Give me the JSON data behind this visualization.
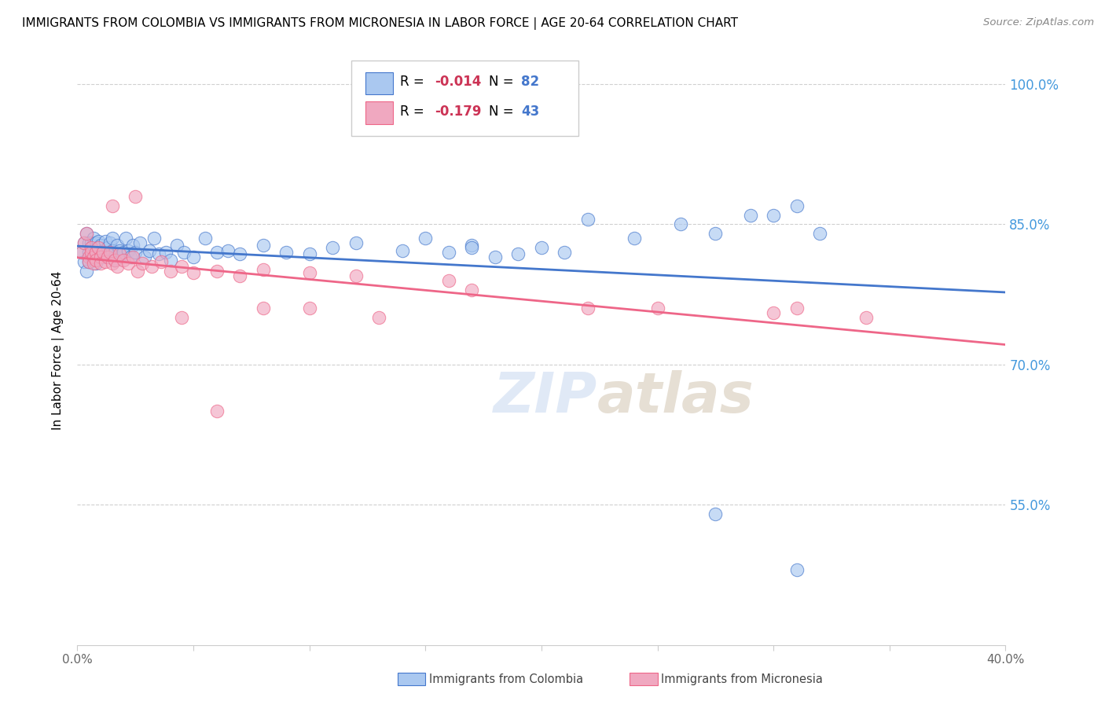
{
  "title": "IMMIGRANTS FROM COLOMBIA VS IMMIGRANTS FROM MICRONESIA IN LABOR FORCE | AGE 20-64 CORRELATION CHART",
  "source": "Source: ZipAtlas.com",
  "ylabel": "In Labor Force | Age 20-64",
  "xlim": [
    0.0,
    0.4
  ],
  "ylim": [
    0.4,
    1.03
  ],
  "yticks": [
    0.55,
    0.7,
    0.85,
    1.0
  ],
  "ytick_labels": [
    "55.0%",
    "70.0%",
    "85.0%",
    "100.0%"
  ],
  "xtick_labels_outer": [
    "0.0%",
    "40.0%"
  ],
  "colombia_R": -0.014,
  "colombia_N": 82,
  "micronesia_R": -0.179,
  "micronesia_N": 43,
  "colombia_color": "#aac8f0",
  "micronesia_color": "#f0a8c0",
  "colombia_line_color": "#4477cc",
  "micronesia_line_color": "#ee6688",
  "legend_R_color": "#cc3355",
  "legend_N_color": "#4477cc",
  "watermark_color": "#c8d8f0",
  "colombia_x": [
    0.002,
    0.003,
    0.003,
    0.004,
    0.004,
    0.005,
    0.005,
    0.005,
    0.006,
    0.006,
    0.006,
    0.007,
    0.007,
    0.007,
    0.007,
    0.008,
    0.008,
    0.008,
    0.009,
    0.009,
    0.009,
    0.01,
    0.01,
    0.011,
    0.011,
    0.012,
    0.012,
    0.013,
    0.013,
    0.014,
    0.014,
    0.015,
    0.015,
    0.016,
    0.016,
    0.017,
    0.018,
    0.019,
    0.02,
    0.021,
    0.022,
    0.023,
    0.024,
    0.025,
    0.027,
    0.029,
    0.031,
    0.033,
    0.035,
    0.038,
    0.04,
    0.043,
    0.046,
    0.05,
    0.055,
    0.06,
    0.065,
    0.07,
    0.08,
    0.09,
    0.1,
    0.11,
    0.12,
    0.14,
    0.15,
    0.16,
    0.17,
    0.18,
    0.2,
    0.22,
    0.24,
    0.26,
    0.275,
    0.29,
    0.3,
    0.31,
    0.32,
    0.21,
    0.19,
    0.17,
    0.275,
    0.31
  ],
  "colombia_y": [
    0.82,
    0.81,
    0.83,
    0.8,
    0.84,
    0.82,
    0.83,
    0.81,
    0.83,
    0.825,
    0.815,
    0.82,
    0.828,
    0.835,
    0.812,
    0.822,
    0.83,
    0.808,
    0.825,
    0.818,
    0.832,
    0.82,
    0.828,
    0.815,
    0.822,
    0.832,
    0.818,
    0.82,
    0.825,
    0.83,
    0.815,
    0.822,
    0.835,
    0.82,
    0.812,
    0.828,
    0.822,
    0.818,
    0.82,
    0.835,
    0.822,
    0.815,
    0.828,
    0.82,
    0.83,
    0.815,
    0.822,
    0.835,
    0.818,
    0.82,
    0.812,
    0.828,
    0.82,
    0.815,
    0.835,
    0.82,
    0.822,
    0.818,
    0.828,
    0.82,
    0.818,
    0.825,
    0.83,
    0.822,
    0.835,
    0.82,
    0.828,
    0.815,
    0.825,
    0.855,
    0.835,
    0.85,
    0.84,
    0.86,
    0.86,
    0.87,
    0.84,
    0.82,
    0.818,
    0.825,
    0.54,
    0.48
  ],
  "micronesia_x": [
    0.002,
    0.003,
    0.004,
    0.005,
    0.005,
    0.006,
    0.006,
    0.007,
    0.007,
    0.008,
    0.008,
    0.009,
    0.01,
    0.01,
    0.011,
    0.012,
    0.013,
    0.014,
    0.015,
    0.016,
    0.017,
    0.018,
    0.02,
    0.022,
    0.024,
    0.026,
    0.028,
    0.032,
    0.036,
    0.04,
    0.045,
    0.05,
    0.06,
    0.07,
    0.08,
    0.1,
    0.12,
    0.16,
    0.17,
    0.22,
    0.25,
    0.3,
    0.34
  ],
  "micronesia_y": [
    0.82,
    0.83,
    0.84,
    0.815,
    0.81,
    0.825,
    0.82,
    0.815,
    0.808,
    0.82,
    0.812,
    0.825,
    0.815,
    0.808,
    0.82,
    0.81,
    0.815,
    0.82,
    0.808,
    0.812,
    0.805,
    0.818,
    0.812,
    0.808,
    0.815,
    0.8,
    0.808,
    0.805,
    0.81,
    0.8,
    0.805,
    0.798,
    0.8,
    0.795,
    0.802,
    0.798,
    0.795,
    0.79,
    0.78,
    0.76,
    0.76,
    0.755,
    0.75
  ],
  "micronesia_outliers_x": [
    0.015,
    0.025,
    0.045,
    0.06,
    0.08,
    0.1,
    0.13,
    0.31
  ],
  "micronesia_outliers_y": [
    0.87,
    0.88,
    0.75,
    0.65,
    0.76,
    0.76,
    0.75,
    0.76
  ]
}
